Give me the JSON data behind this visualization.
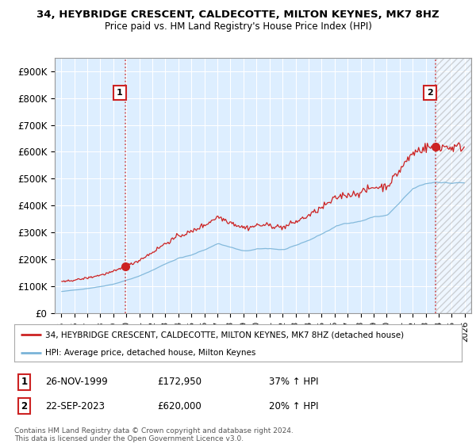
{
  "title_line1": "34, HEYBRIDGE CRESCENT, CALDECOTTE, MILTON KEYNES, MK7 8HZ",
  "title_line2": "Price paid vs. HM Land Registry's House Price Index (HPI)",
  "ylim": [
    0,
    950000
  ],
  "yticks": [
    0,
    100000,
    200000,
    300000,
    400000,
    500000,
    600000,
    700000,
    800000,
    900000
  ],
  "ytick_labels": [
    "£0",
    "£100K",
    "£200K",
    "£300K",
    "£400K",
    "£500K",
    "£600K",
    "£700K",
    "£800K",
    "£900K"
  ],
  "sale1_year": 1999.9,
  "sale1_price": 172950,
  "sale2_year": 2023.73,
  "sale2_price": 620000,
  "hpi_color": "#7ab4d8",
  "sale_color": "#cc2222",
  "background_color": "#ffffff",
  "plot_bg_color": "#ddeeff",
  "grid_color": "#ffffff",
  "legend_line1": "34, HEYBRIDGE CRESCENT, CALDECOTTE, MILTON KEYNES, MK7 8HZ (detached house)",
  "legend_line2": "HPI: Average price, detached house, Milton Keynes",
  "annotation1_date": "26-NOV-1999",
  "annotation1_price": "£172,950",
  "annotation1_hpi": "37% ↑ HPI",
  "annotation2_date": "22-SEP-2023",
  "annotation2_price": "£620,000",
  "annotation2_hpi": "20% ↑ HPI",
  "footer": "Contains HM Land Registry data © Crown copyright and database right 2024.\nThis data is licensed under the Open Government Licence v3.0.",
  "xlim_start": 1994.5,
  "xlim_end": 2026.5,
  "xticks": [
    1995,
    1996,
    1997,
    1998,
    1999,
    2000,
    2001,
    2002,
    2003,
    2004,
    2005,
    2006,
    2007,
    2008,
    2009,
    2010,
    2011,
    2012,
    2013,
    2014,
    2015,
    2016,
    2017,
    2018,
    2019,
    2020,
    2021,
    2022,
    2023,
    2024,
    2025,
    2026
  ]
}
